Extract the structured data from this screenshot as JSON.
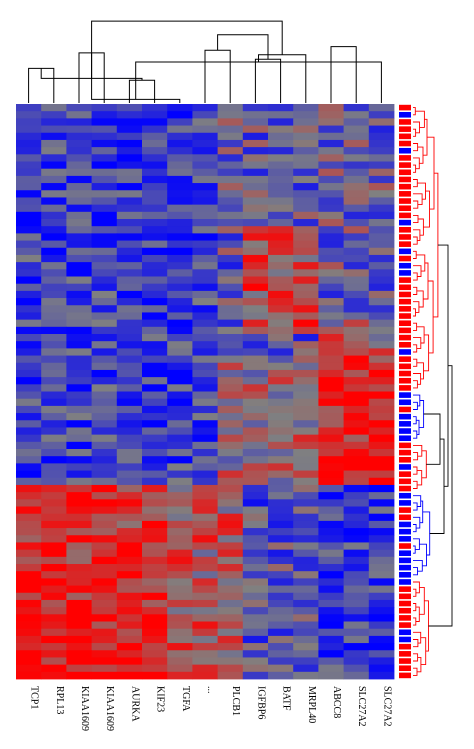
{
  "chart_data": {
    "type": "heatmap",
    "title": "",
    "xlabel": "",
    "ylabel": "",
    "columns": [
      "TCP1",
      "RPL13",
      "KIAA1609",
      "KIAA1609",
      "AURKA",
      "KIF23",
      "TGFA",
      "...",
      "PLCB1",
      "IGFBP6",
      "BATF",
      "MRPL40",
      "ABCC8",
      "SLC27A2",
      "SLC27A2"
    ],
    "row_groups": {
      "count": 80,
      "colors": [
        "#0000ff",
        "#ff0000"
      ]
    },
    "color_scale": {
      "low": "#0000ff",
      "mid": "#808080",
      "high": "#ff0000"
    },
    "col_dendrogram": [
      [
        0,
        1
      ],
      [
        2,
        3
      ],
      [
        4,
        5
      ],
      [
        16,
        6
      ],
      [
        15,
        17
      ],
      [
        18,
        14
      ],
      [
        7,
        8
      ],
      [
        9,
        10
      ],
      [
        20,
        11
      ],
      [
        12,
        13
      ],
      [
        21,
        22
      ],
      [
        23,
        19
      ]
    ],
    "col_merge_heights": [
      0.38,
      0.55,
      0.25,
      0.04,
      0.27,
      0.45,
      0.58,
      0.48,
      0.53,
      0.62,
      0.75,
      0.9
    ],
    "row_dendrogram_clusters": [
      [
        0,
        40,
        "#ff0000"
      ],
      [
        40,
        47,
        "#0000ff"
      ],
      [
        47,
        54,
        "#ff0000"
      ],
      [
        54,
        66,
        "#0000ff"
      ],
      [
        66,
        80,
        "#ff0000"
      ]
    ]
  },
  "labels": {
    "c0": "TCP1",
    "c1": "RPL13",
    "c2": "KIAA1609",
    "c3": "KIAA1609",
    "c4": "AURKA",
    "c5": "KIF23",
    "c6": "TGFA",
    "c7": "...",
    "c8": "PLCB1",
    "c9": "IGFBP6",
    "c10": "BATF",
    "c11": "MRPL40",
    "c12": "ABCC8",
    "c13": "SLC27A2",
    "c14": "SLC27A2"
  }
}
